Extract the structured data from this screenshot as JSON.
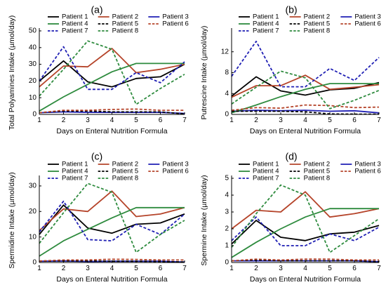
{
  "chart_data": [
    {
      "type": "line",
      "panel_label": "(a)",
      "xlabel": "Days on Enteral Nutrition Formula",
      "ylabel": "Total Polyamines Intake (µmol/day)",
      "x": [
        1,
        2,
        3,
        4,
        5,
        6,
        7
      ],
      "xlim": [
        1,
        7
      ],
      "ylim": [
        0,
        50
      ],
      "yticks": [
        0,
        10,
        20,
        30,
        40,
        50
      ],
      "legend_position": "top",
      "grid": false,
      "series": [
        {
          "name": "Patient 1",
          "color": "#000000",
          "dash": "solid",
          "values": [
            20,
            32,
            19.5,
            16.5,
            21.5,
            22.5,
            30
          ]
        },
        {
          "name": "Patient 2",
          "color": "#b5442a",
          "dash": "solid",
          "values": [
            16.5,
            29,
            28.5,
            39.5,
            25,
            27,
            30
          ]
        },
        {
          "name": "Patient 3",
          "color": "#1f1fb4",
          "dash": "solid",
          "values": [
            1,
            1.5,
            1.2,
            1.2,
            1.2,
            1.2,
            0.6
          ]
        },
        {
          "name": "Patient 4",
          "color": "#2e8b3e",
          "dash": "solid",
          "values": [
            2,
            10.5,
            18,
            25.5,
            30.5,
            30.5,
            30.5
          ]
        },
        {
          "name": "Patient 5",
          "color": "#000000",
          "dash": "dashed",
          "values": [
            1,
            2,
            2,
            1.5,
            1.5,
            1.5,
            0.3
          ]
        },
        {
          "name": "Patient 6",
          "color": "#b5442a",
          "dash": "dashed",
          "values": [
            1,
            2.5,
            2.5,
            3,
            3.2,
            2.5,
            2.5
          ]
        },
        {
          "name": "Patient 7",
          "color": "#1f1fb4",
          "dash": "dashed",
          "values": [
            20,
            40.5,
            15,
            15,
            25,
            19,
            31.5
          ]
        },
        {
          "name": "Patient 8",
          "color": "#2e8b3e",
          "dash": "dashed",
          "values": [
            11,
            27,
            44,
            39,
            6,
            15.5,
            24
          ]
        }
      ]
    },
    {
      "type": "line",
      "panel_label": "(b)",
      "xlabel": "Days on Enteral Nutrition Formula",
      "ylabel": "Putrescine Intake (µmol/day)",
      "x": [
        1,
        2,
        3,
        4,
        5,
        6,
        7
      ],
      "xlim": [
        1,
        7
      ],
      "ylim": [
        0,
        16
      ],
      "yticks": [
        0,
        4,
        8,
        12
      ],
      "legend_position": "top",
      "grid": false,
      "series": [
        {
          "name": "Patient 1",
          "color": "#000000",
          "dash": "solid",
          "values": [
            3.5,
            7.2,
            4.5,
            3.7,
            4.7,
            5,
            6.1
          ]
        },
        {
          "name": "Patient 2",
          "color": "#b5442a",
          "dash": "solid",
          "values": [
            3.3,
            5.5,
            5.5,
            7.5,
            4.8,
            5.2,
            5.7
          ]
        },
        {
          "name": "Patient 3",
          "color": "#1f1fb4",
          "dash": "solid",
          "values": [
            0.6,
            0.8,
            0.7,
            0.8,
            0.6,
            0.7,
            0.3
          ]
        },
        {
          "name": "Patient 4",
          "color": "#2e8b3e",
          "dash": "solid",
          "values": [
            0.3,
            1.8,
            3.4,
            4.8,
            5.9,
            5.9,
            5.9
          ]
        },
        {
          "name": "Patient 5",
          "color": "#000000",
          "dash": "dashed",
          "values": [
            0.6,
            0.6,
            0.6,
            0.5,
            0.1,
            0.05,
            0.05
          ]
        },
        {
          "name": "Patient 6",
          "color": "#b5442a",
          "dash": "dashed",
          "values": [
            0.8,
            1.3,
            1.2,
            1.8,
            1.7,
            1.3,
            1.4
          ]
        },
        {
          "name": "Patient 7",
          "color": "#1f1fb4",
          "dash": "dashed",
          "values": [
            7.3,
            14,
            5.3,
            5.3,
            8.8,
            6.5,
            10.9
          ]
        },
        {
          "name": "Patient 8",
          "color": "#2e8b3e",
          "dash": "dashed",
          "values": [
            2,
            5.2,
            8.3,
            7,
            1.1,
            2.7,
            4.6
          ]
        }
      ]
    },
    {
      "type": "line",
      "panel_label": "(c)",
      "xlabel": "Days on Enteral Nutrition Formula",
      "ylabel": "Spermidine Intake (µmol/day)",
      "x": [
        1,
        2,
        3,
        4,
        5,
        6,
        7
      ],
      "xlim": [
        1,
        7
      ],
      "ylim": [
        0,
        33
      ],
      "yticks": [
        0,
        10,
        20,
        30
      ],
      "legend_position": "top",
      "grid": false,
      "series": [
        {
          "name": "Patient 1",
          "color": "#000000",
          "dash": "solid",
          "values": [
            11,
            22.5,
            13.5,
            11.5,
            15,
            15.5,
            19
          ]
        },
        {
          "name": "Patient 2",
          "color": "#b5442a",
          "dash": "solid",
          "values": [
            12.5,
            21,
            20,
            28,
            18,
            19,
            21.5
          ]
        },
        {
          "name": "Patient 3",
          "color": "#1f1fb4",
          "dash": "solid",
          "values": [
            0.5,
            0.6,
            0.4,
            0.5,
            0.5,
            0.5,
            0.2
          ]
        },
        {
          "name": "Patient 4",
          "color": "#2e8b3e",
          "dash": "solid",
          "values": [
            2.5,
            8.5,
            13,
            17.5,
            21.5,
            21.5,
            21.5
          ]
        },
        {
          "name": "Patient 5",
          "color": "#000000",
          "dash": "dashed",
          "values": [
            0.5,
            0.6,
            0.6,
            0.5,
            0.5,
            0.4,
            0.2
          ]
        },
        {
          "name": "Patient 6",
          "color": "#b5442a",
          "dash": "dashed",
          "values": [
            0.6,
            1,
            1,
            1.3,
            1.2,
            1,
            1
          ]
        },
        {
          "name": "Patient 7",
          "color": "#1f1fb4",
          "dash": "dashed",
          "values": [
            12,
            24,
            9,
            8.5,
            15,
            11,
            19
          ]
        },
        {
          "name": "Patient 8",
          "color": "#2e8b3e",
          "dash": "dashed",
          "values": [
            7.5,
            19.5,
            31,
            27.5,
            4,
            11,
            16.5
          ]
        }
      ]
    },
    {
      "type": "line",
      "panel_label": "(d)",
      "xlabel": "Days on Enteral Nutrition Formula",
      "ylabel": "Spermine Intake (µmol/day)",
      "x": [
        1,
        2,
        3,
        4,
        5,
        6,
        7
      ],
      "xlim": [
        1,
        7
      ],
      "ylim": [
        0,
        5
      ],
      "yticks": [
        0,
        1,
        2,
        3,
        4,
        5
      ],
      "legend_position": "top",
      "grid": false,
      "series": [
        {
          "name": "Patient 1",
          "color": "#000000",
          "dash": "solid",
          "values": [
            1.1,
            2.5,
            1.5,
            1.3,
            1.7,
            1.8,
            2.2
          ]
        },
        {
          "name": "Patient 2",
          "color": "#b5442a",
          "dash": "solid",
          "values": [
            2,
            3.1,
            3,
            4.2,
            2.7,
            2.9,
            3.2
          ]
        },
        {
          "name": "Patient 3",
          "color": "#1f1fb4",
          "dash": "solid",
          "values": [
            0.1,
            0.1,
            0.1,
            0.1,
            0.1,
            0.1,
            0.05
          ]
        },
        {
          "name": "Patient 4",
          "color": "#2e8b3e",
          "dash": "solid",
          "values": [
            0.3,
            1.2,
            2,
            2.7,
            3.2,
            3.2,
            3.2
          ]
        },
        {
          "name": "Patient 5",
          "color": "#000000",
          "dash": "dashed",
          "values": [
            0.1,
            0.15,
            0.1,
            0.1,
            0.1,
            0.1,
            0.05
          ]
        },
        {
          "name": "Patient 6",
          "color": "#b5442a",
          "dash": "dashed",
          "values": [
            0.1,
            0.2,
            0.15,
            0.2,
            0.2,
            0.15,
            0.15
          ]
        },
        {
          "name": "Patient 7",
          "color": "#1f1fb4",
          "dash": "dashed",
          "values": [
            1.3,
            2.7,
            1,
            1,
            1.7,
            1.3,
            2.1
          ]
        },
        {
          "name": "Patient 8",
          "color": "#2e8b3e",
          "dash": "dashed",
          "values": [
            0.9,
            2.9,
            4.6,
            4,
            0.6,
            1.6,
            2.6
          ]
        }
      ]
    }
  ]
}
